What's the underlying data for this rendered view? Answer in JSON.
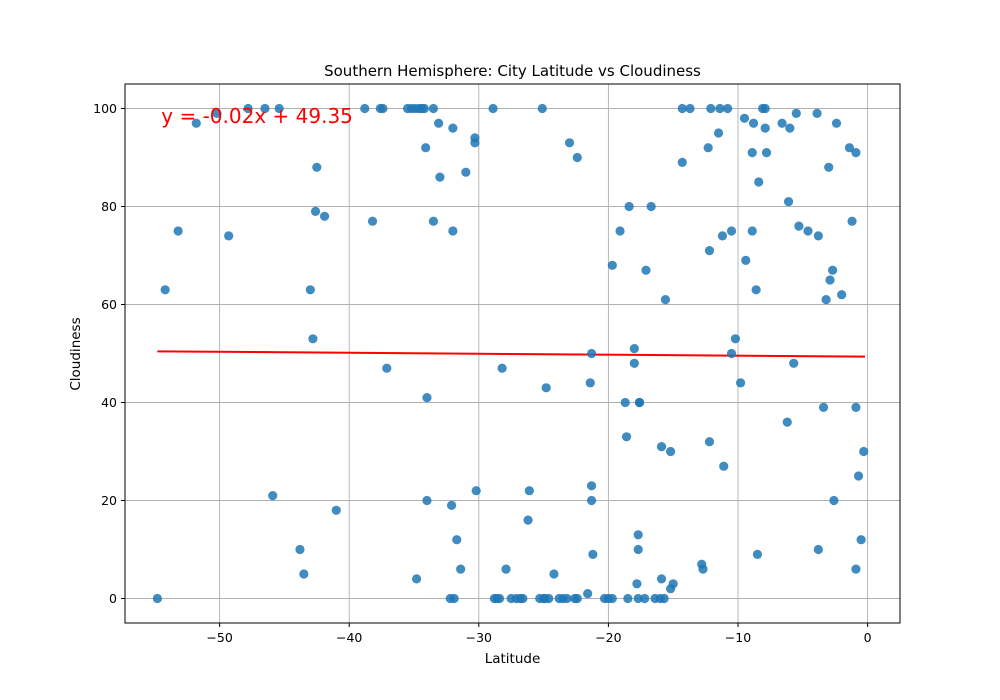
{
  "chart_data": {
    "type": "scatter",
    "title": "Southern Hemisphere: City Latitude vs Cloudiness",
    "xlabel": "Latitude",
    "ylabel": "Cloudiness",
    "xlim": [
      -57.3,
      2.5
    ],
    "ylim": [
      -5,
      105
    ],
    "xticks": [
      -50,
      -40,
      -30,
      -20,
      -10,
      0
    ],
    "yticks": [
      0,
      20,
      40,
      60,
      80,
      100
    ],
    "xtick_labels": [
      "−50",
      "−40",
      "−30",
      "−20",
      "−10",
      "0"
    ],
    "ytick_labels": [
      "0",
      "20",
      "40",
      "60",
      "80",
      "100"
    ],
    "grid": true,
    "colors": {
      "points": "#1f77b4",
      "regression": "#ff0000",
      "annotation": "#ff0000"
    },
    "annotation": {
      "text": "y = -0.02x + 49.35",
      "x": -54.5,
      "y": 98.5
    },
    "regression": {
      "slope": -0.02,
      "intercept": 49.35,
      "x_range": [
        -54.8,
        -0.2
      ]
    },
    "series": [
      {
        "points": [
          [
            -54.8,
            0
          ],
          [
            -54.2,
            63
          ],
          [
            -53.2,
            75
          ],
          [
            -51.8,
            97
          ],
          [
            -50.2,
            99
          ],
          [
            -49.3,
            74
          ],
          [
            -47.8,
            100
          ],
          [
            -46.5,
            100
          ],
          [
            -45.9,
            21
          ],
          [
            -45.4,
            100
          ],
          [
            -43.8,
            10
          ],
          [
            -43.5,
            5
          ],
          [
            -43.0,
            63
          ],
          [
            -42.8,
            53
          ],
          [
            -42.6,
            79
          ],
          [
            -42.5,
            88
          ],
          [
            -41.9,
            78
          ],
          [
            -41.0,
            18
          ],
          [
            -38.8,
            100
          ],
          [
            -38.2,
            77
          ],
          [
            -37.6,
            100
          ],
          [
            -37.4,
            100
          ],
          [
            -37.1,
            47
          ],
          [
            -35.5,
            100
          ],
          [
            -35.2,
            100
          ],
          [
            -34.9,
            100
          ],
          [
            -34.6,
            100
          ],
          [
            -34.4,
            100
          ],
          [
            -34.2,
            100
          ],
          [
            -34.1,
            92
          ],
          [
            -34.0,
            41
          ],
          [
            -34.0,
            20
          ],
          [
            -34.8,
            4
          ],
          [
            -33.5,
            77
          ],
          [
            -33.5,
            100
          ],
          [
            -33.1,
            97
          ],
          [
            -33.0,
            86
          ],
          [
            -32.2,
            0
          ],
          [
            -32.1,
            19
          ],
          [
            -32.0,
            96
          ],
          [
            -32.0,
            75
          ],
          [
            -31.9,
            0
          ],
          [
            -31.7,
            12
          ],
          [
            -31.4,
            6
          ],
          [
            -31.0,
            87
          ],
          [
            -30.3,
            94
          ],
          [
            -30.3,
            93
          ],
          [
            -30.2,
            22
          ],
          [
            -28.9,
            100
          ],
          [
            -28.8,
            0
          ],
          [
            -28.6,
            0
          ],
          [
            -28.4,
            0
          ],
          [
            -28.2,
            47
          ],
          [
            -27.9,
            6
          ],
          [
            -27.5,
            0
          ],
          [
            -27.1,
            0
          ],
          [
            -26.8,
            0
          ],
          [
            -26.6,
            0
          ],
          [
            -26.2,
            16
          ],
          [
            -26.1,
            22
          ],
          [
            -25.3,
            0
          ],
          [
            -25.1,
            100
          ],
          [
            -25.0,
            0
          ],
          [
            -24.9,
            0
          ],
          [
            -24.8,
            43
          ],
          [
            -24.6,
            0
          ],
          [
            -24.2,
            5
          ],
          [
            -23.8,
            0
          ],
          [
            -23.5,
            0
          ],
          [
            -23.2,
            0
          ],
          [
            -23.0,
            93
          ],
          [
            -22.6,
            0
          ],
          [
            -22.4,
            0
          ],
          [
            -22.4,
            90
          ],
          [
            -21.6,
            1
          ],
          [
            -21.4,
            44
          ],
          [
            -21.3,
            50
          ],
          [
            -21.3,
            23
          ],
          [
            -21.3,
            20
          ],
          [
            -21.2,
            9
          ],
          [
            -20.3,
            0
          ],
          [
            -20.0,
            0
          ],
          [
            -19.7,
            0
          ],
          [
            -19.7,
            68
          ],
          [
            -19.1,
            75
          ],
          [
            -18.7,
            40
          ],
          [
            -18.6,
            33
          ],
          [
            -18.5,
            0
          ],
          [
            -18.4,
            80
          ],
          [
            -18.0,
            51
          ],
          [
            -18.0,
            48
          ],
          [
            -17.8,
            3
          ],
          [
            -17.7,
            0
          ],
          [
            -17.7,
            13
          ],
          [
            -17.7,
            10
          ],
          [
            -17.6,
            40
          ],
          [
            -17.6,
            40
          ],
          [
            -17.2,
            0
          ],
          [
            -17.1,
            67
          ],
          [
            -16.7,
            80
          ],
          [
            -16.4,
            0
          ],
          [
            -16.0,
            0
          ],
          [
            -15.9,
            31
          ],
          [
            -15.9,
            4
          ],
          [
            -15.7,
            0
          ],
          [
            -15.6,
            61
          ],
          [
            -15.2,
            30
          ],
          [
            -15.2,
            2
          ],
          [
            -15.0,
            3
          ],
          [
            -14.3,
            100
          ],
          [
            -14.3,
            89
          ],
          [
            -13.7,
            100
          ],
          [
            -12.8,
            7
          ],
          [
            -12.7,
            6
          ],
          [
            -12.3,
            92
          ],
          [
            -12.2,
            71
          ],
          [
            -12.2,
            32
          ],
          [
            -12.1,
            100
          ],
          [
            -11.5,
            95
          ],
          [
            -11.4,
            100
          ],
          [
            -11.2,
            74
          ],
          [
            -11.1,
            27
          ],
          [
            -10.8,
            100
          ],
          [
            -10.5,
            75
          ],
          [
            -10.5,
            50
          ],
          [
            -10.2,
            53
          ],
          [
            -9.8,
            44
          ],
          [
            -9.5,
            98
          ],
          [
            -9.4,
            69
          ],
          [
            -8.9,
            91
          ],
          [
            -8.9,
            75
          ],
          [
            -8.8,
            97
          ],
          [
            -8.6,
            63
          ],
          [
            -8.5,
            9
          ],
          [
            -8.4,
            85
          ],
          [
            -8.1,
            100
          ],
          [
            -7.9,
            100
          ],
          [
            -7.9,
            96
          ],
          [
            -7.8,
            91
          ],
          [
            -6.6,
            97
          ],
          [
            -6.2,
            36
          ],
          [
            -6.1,
            81
          ],
          [
            -6.0,
            96
          ],
          [
            -5.7,
            48
          ],
          [
            -5.5,
            99
          ],
          [
            -5.3,
            76
          ],
          [
            -4.6,
            75
          ],
          [
            -3.9,
            99
          ],
          [
            -3.8,
            74
          ],
          [
            -3.8,
            10
          ],
          [
            -3.4,
            39
          ],
          [
            -3.2,
            61
          ],
          [
            -3.0,
            88
          ],
          [
            -2.9,
            65
          ],
          [
            -2.7,
            67
          ],
          [
            -2.6,
            20
          ],
          [
            -2.4,
            97
          ],
          [
            -2.0,
            62
          ],
          [
            -1.4,
            92
          ],
          [
            -1.2,
            77
          ],
          [
            -0.9,
            91
          ],
          [
            -0.9,
            39
          ],
          [
            -0.9,
            6
          ],
          [
            -0.7,
            25
          ],
          [
            -0.5,
            12
          ],
          [
            -0.3,
            30
          ]
        ]
      }
    ]
  }
}
